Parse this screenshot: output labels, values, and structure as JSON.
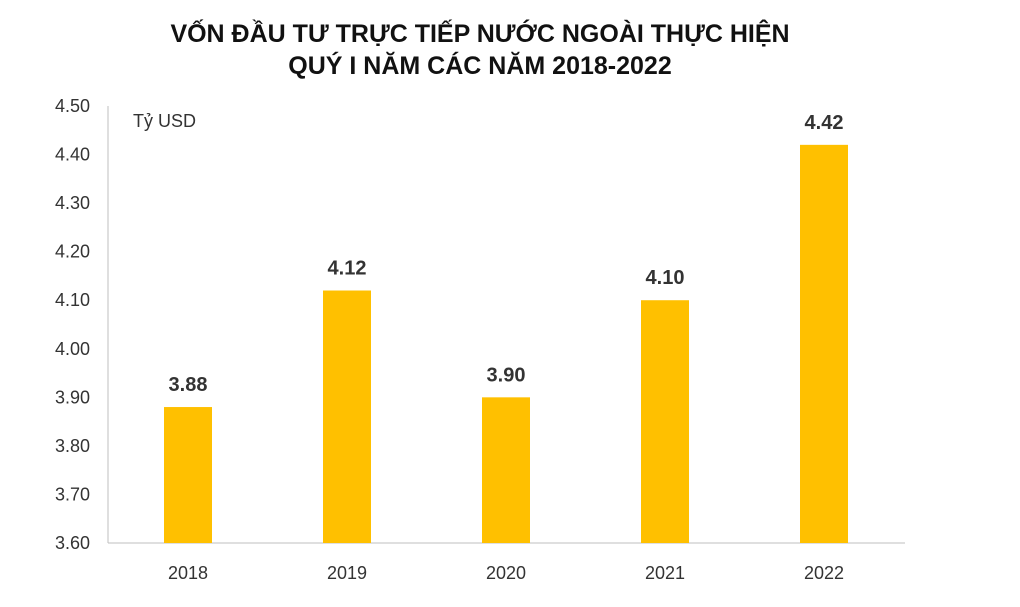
{
  "chart_data": {
    "type": "bar",
    "title_lines": [
      "VỐN ĐẦU TƯ TRỰC TIẾP NƯỚC NGOÀI THỰC HIỆN",
      "QUÝ I NĂM CÁC NĂM 2018-2022"
    ],
    "unit": "Tỷ USD",
    "categories": [
      "2018",
      "2019",
      "2020",
      "2021",
      "2022"
    ],
    "values": [
      3.88,
      4.12,
      3.9,
      4.1,
      4.42
    ],
    "data_labels": [
      "3.88",
      "4.12",
      "3.90",
      "4.10",
      "4.42"
    ],
    "ylim": [
      3.6,
      4.5
    ],
    "yticks": [
      "3.60",
      "3.70",
      "3.80",
      "3.90",
      "4.00",
      "4.10",
      "4.20",
      "4.30",
      "4.40",
      "4.50"
    ],
    "grid": false,
    "legend": "none",
    "bar_color": "#FFC000"
  }
}
